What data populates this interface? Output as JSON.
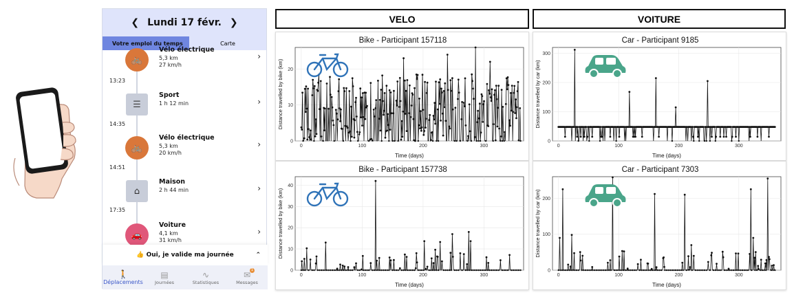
{
  "app": {
    "date": "Lundi 17 févr.",
    "tabs": [
      "Votre emploi du temps",
      "Carte"
    ],
    "activities": [
      {
        "title": "Vélo électrique",
        "line2": "5,3 km",
        "line3": "27 km/h",
        "icon": "bike-icon",
        "color": "#d9773a"
      },
      {
        "title": "Sport",
        "line2": "1 h 12 min",
        "line3": "",
        "icon": "sport-icon",
        "color": "#c8cdd9"
      },
      {
        "title": "Vélo électrique",
        "line2": "5,3 km",
        "line3": "20 km/h",
        "icon": "bike-icon",
        "color": "#d9773a"
      },
      {
        "title": "Maison",
        "line2": "2 h 44 min",
        "line3": "",
        "icon": "home-icon",
        "color": "#c8cdd9"
      },
      {
        "title": "Voiture",
        "line2": "4,1 km",
        "line3": "31 km/h",
        "icon": "car-icon",
        "color": "#e0577a"
      }
    ],
    "times": [
      "13:23",
      "14:35",
      "14:51",
      "17:35"
    ],
    "validate_label": "👍 Oui, je valide ma journée",
    "nav": [
      "Déplacements",
      "Journées",
      "Statistiques",
      "Messages"
    ],
    "messages_badge": "1"
  },
  "columns": {
    "velo": "VELO",
    "voiture": "VOITURE"
  },
  "colors": {
    "bike_icon": "#2f73b8",
    "car_icon": "#4aa58a",
    "line": "#111111",
    "grid": "#e6e6e6"
  },
  "chart_data": [
    {
      "type": "line",
      "title": "Bike - Participant 157118",
      "xlabel": "Time (days)",
      "ylabel": "Distance travelled by bike (km)",
      "xlim": [
        -10,
        365
      ],
      "ylim": [
        0,
        26
      ],
      "xticks": [
        0,
        100,
        200,
        300
      ],
      "yticks": [
        0,
        10,
        20
      ],
      "pattern": "dense",
      "base": 8,
      "spread": 12,
      "spikes": [
        [
          286,
          26
        ],
        [
          168,
          23
        ],
        [
          240,
          24
        ],
        [
          310,
          22
        ]
      ],
      "icon": "bike"
    },
    {
      "type": "line",
      "title": "Car - Participant 9185",
      "xlabel": "Time (days)",
      "ylabel": "Distance travelled by car (km)",
      "xlim": [
        -10,
        370
      ],
      "ylim": [
        0,
        320
      ],
      "xticks": [
        0,
        100,
        200,
        300
      ],
      "yticks": [
        0,
        100,
        200,
        300
      ],
      "pattern": "flat",
      "base": 48,
      "spread": 0,
      "spikes": [
        [
          27,
          312
        ],
        [
          118,
          168
        ],
        [
          162,
          215
        ],
        [
          195,
          115
        ],
        [
          248,
          205
        ]
      ],
      "icon": "car"
    },
    {
      "type": "line",
      "title": "Bike - Participant 157738",
      "xlabel": "Time (days)",
      "ylabel": "Distance travelled by bike (km)",
      "xlim": [
        -10,
        365
      ],
      "ylim": [
        0,
        44
      ],
      "xticks": [
        0,
        100,
        200,
        300
      ],
      "yticks": [
        0,
        10,
        20,
        30,
        40
      ],
      "pattern": "sparse",
      "base": 0,
      "spread": 14,
      "spikes": [
        [
          122,
          42
        ],
        [
          275,
          18
        ],
        [
          248,
          17
        ],
        [
          40,
          13
        ]
      ],
      "icon": "bike"
    },
    {
      "type": "line",
      "title": "Car - Participant 7303",
      "xlabel": "Time (days)",
      "ylabel": "Distance travelled by car (km)",
      "xlim": [
        -10,
        370
      ],
      "ylim": [
        0,
        260
      ],
      "xticks": [
        0,
        100,
        200,
        300
      ],
      "yticks": [
        0,
        100,
        200
      ],
      "pattern": "sparse",
      "base": 0,
      "spread": 90,
      "spikes": [
        [
          7,
          225
        ],
        [
          90,
          258
        ],
        [
          160,
          212
        ],
        [
          210,
          210
        ],
        [
          320,
          225
        ],
        [
          348,
          255
        ],
        [
          362,
          175
        ],
        [
          22,
          98
        ]
      ],
      "icon": "car"
    }
  ]
}
